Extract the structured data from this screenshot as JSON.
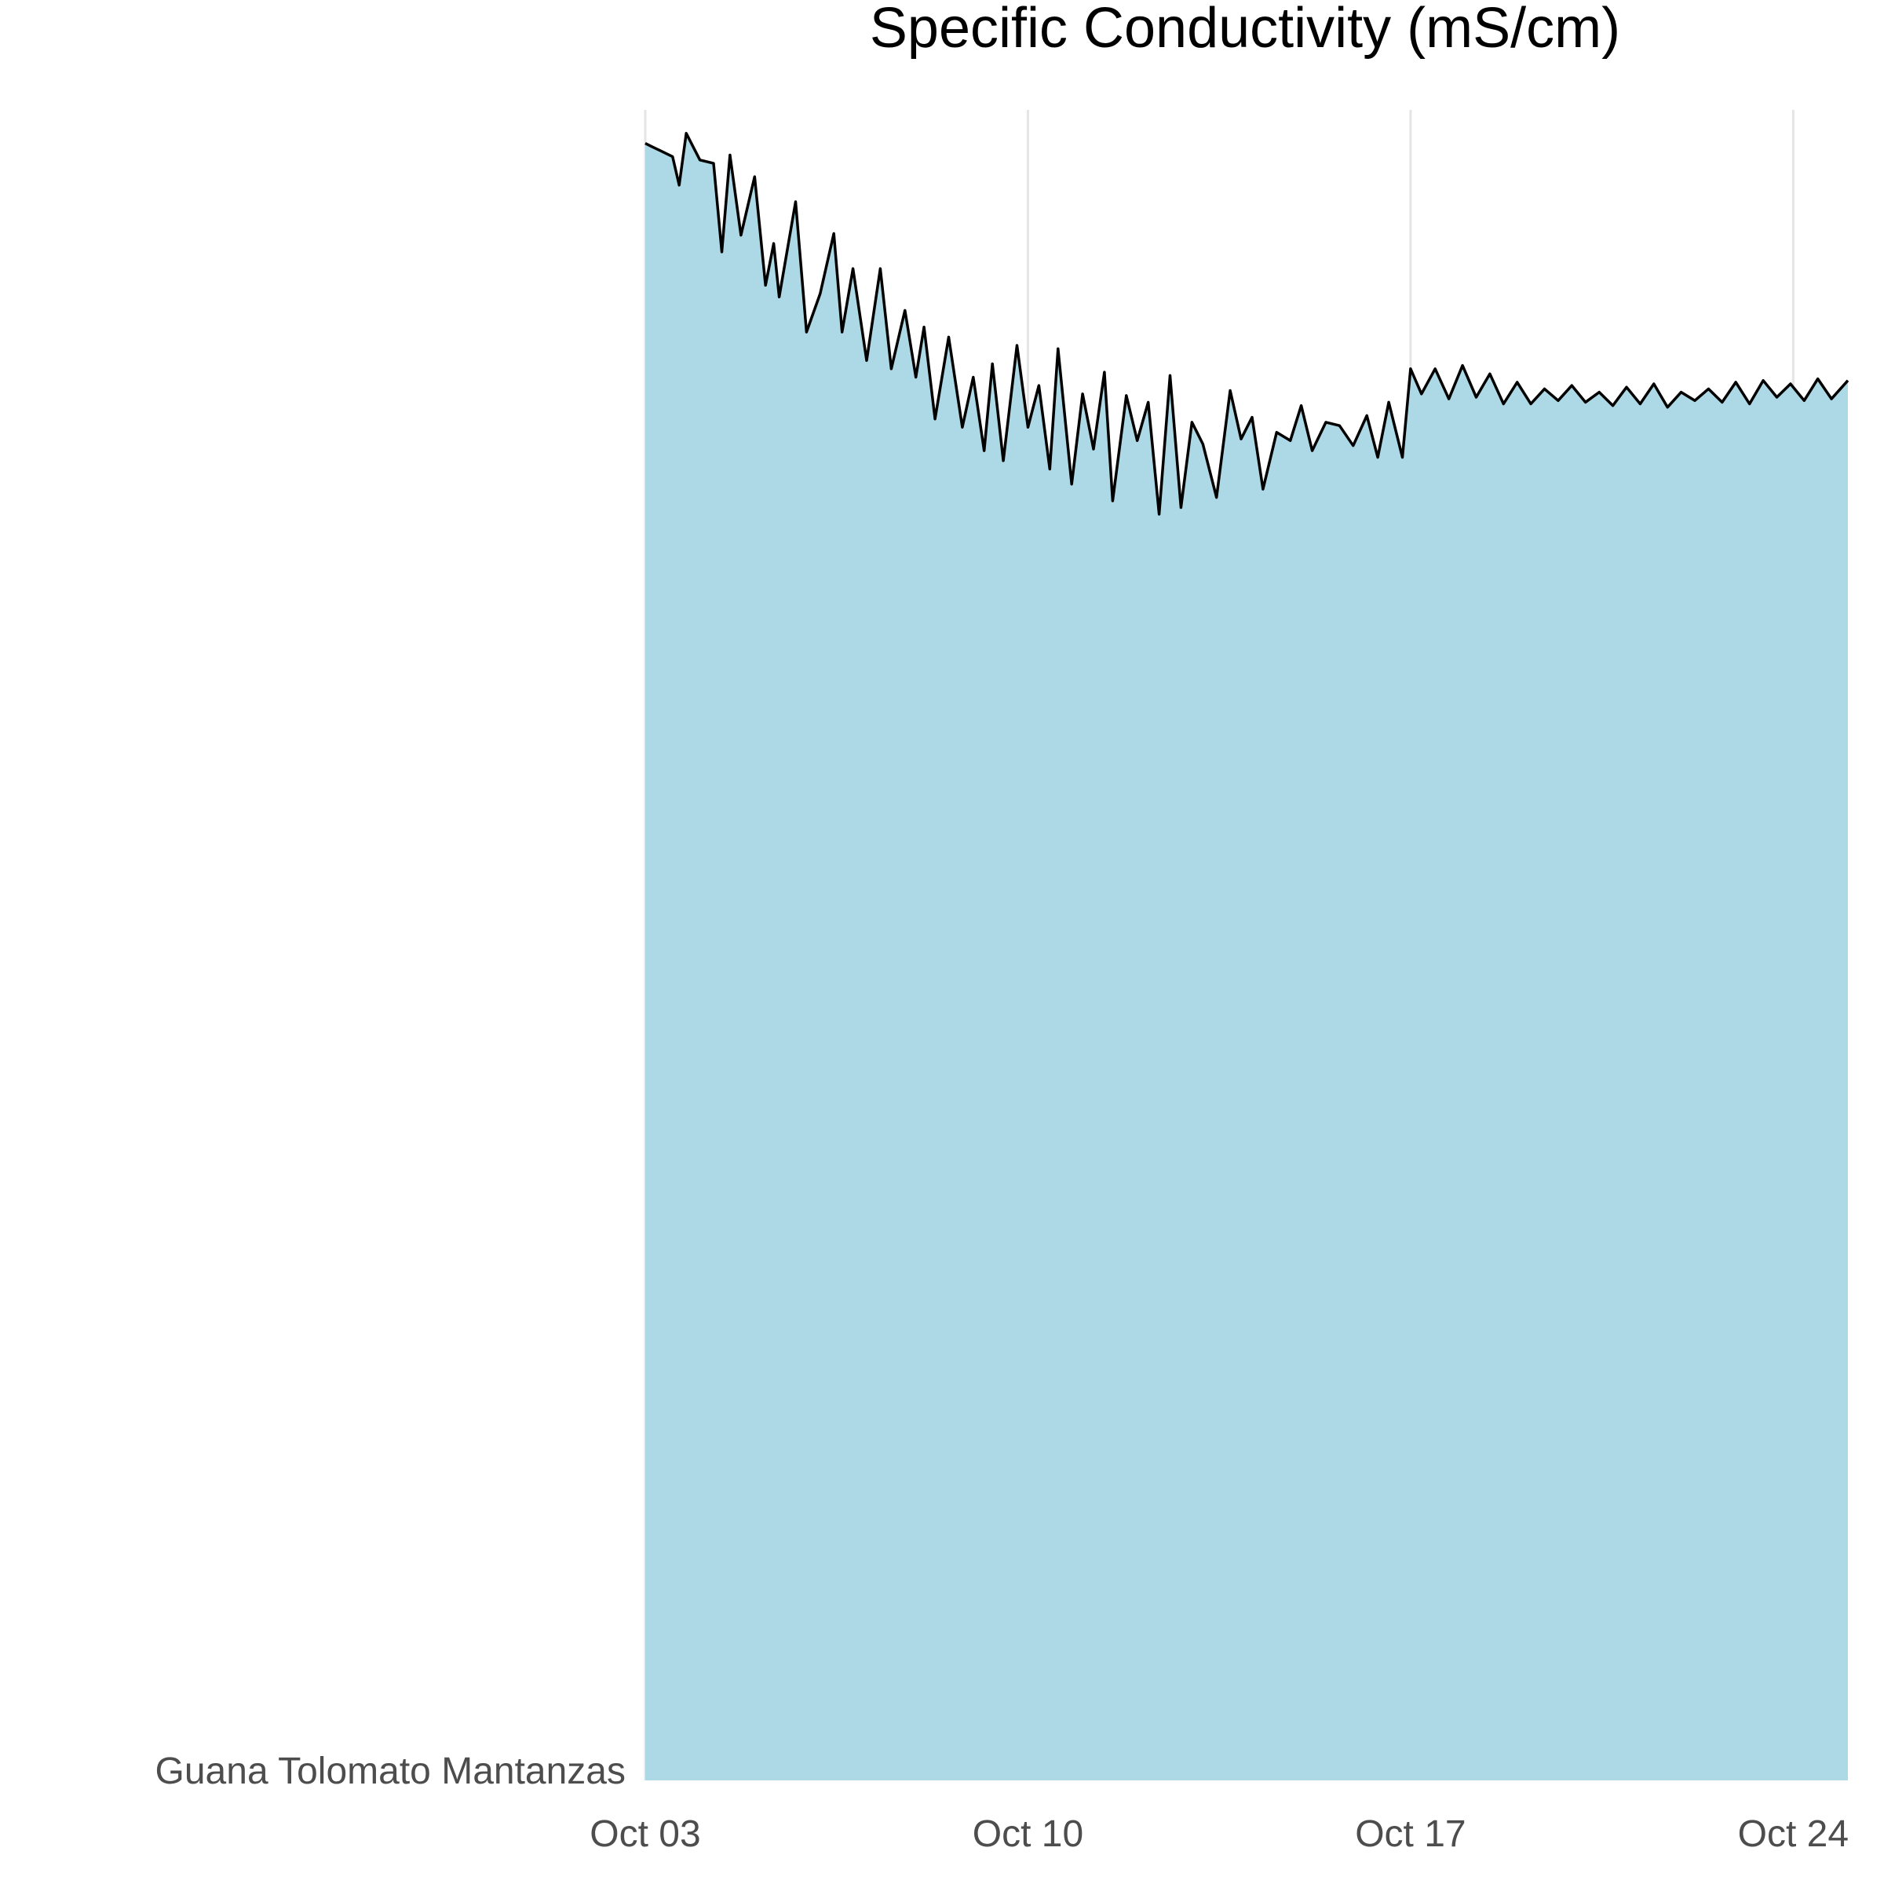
{
  "chart_data": {
    "type": "area",
    "title": "Specific Conductivity (mS/cm)",
    "xlabel": "",
    "ylabel": "",
    "category_label": "Guana Tolomato Mantanzas",
    "x_ticks": [
      "Oct 03",
      "Oct 10",
      "Oct 17",
      "Oct 24"
    ],
    "x_tick_days": [
      0,
      7,
      14,
      21
    ],
    "x_range_days": [
      0,
      22
    ],
    "grid": "vertical-major",
    "fill_color": "#add8e6",
    "line_color": "#000000",
    "series": [
      {
        "x_days": [
          0,
          0.12,
          0.25,
          0.5,
          0.62,
          0.75,
          1.0,
          1.25,
          1.4,
          1.55,
          1.75,
          2.0,
          2.2,
          2.35,
          2.45,
          2.75,
          2.95,
          3.2,
          3.45,
          3.6,
          3.8,
          4.05,
          4.3,
          4.5,
          4.75,
          4.95,
          5.1,
          5.3,
          5.55,
          5.8,
          6.0,
          6.2,
          6.35,
          6.55,
          6.8,
          7.0,
          7.2,
          7.4,
          7.55,
          7.8,
          8.0,
          8.2,
          8.4,
          8.55,
          8.8,
          9.0,
          9.2,
          9.4,
          9.6,
          9.8,
          10.0,
          10.2,
          10.45,
          10.7,
          10.9,
          11.1,
          11.3,
          11.55,
          11.8,
          12.0,
          12.2,
          12.45,
          12.7,
          12.95,
          13.2,
          13.4,
          13.6,
          13.85,
          14.0,
          14.2,
          14.45,
          14.7,
          14.95,
          15.2,
          15.45,
          15.7,
          15.95,
          16.2,
          16.45,
          16.7,
          16.95,
          17.2,
          17.45,
          17.7,
          17.95,
          18.2,
          18.45,
          18.7,
          18.95,
          19.2,
          19.45,
          19.7,
          19.95,
          20.2,
          20.45,
          20.7,
          20.95,
          21.2,
          21.45,
          21.7,
          22.0
        ],
        "values": [
          98,
          97.8,
          97.6,
          97.2,
          95.5,
          98.6,
          97,
          96.8,
          91.5,
          97.3,
          92.5,
          96,
          89.5,
          92,
          88.8,
          94.5,
          86.7,
          89,
          92.6,
          86.7,
          90.5,
          85,
          90.5,
          84.5,
          88,
          84,
          87,
          81.5,
          86.4,
          81,
          84,
          79.6,
          84.8,
          79,
          85.9,
          81,
          83.5,
          78.5,
          85.7,
          77.6,
          83,
          79.7,
          84.3,
          76.6,
          82.9,
          80.2,
          82.5,
          75.8,
          84.1,
          76.2,
          81.3,
          80,
          76.8,
          83.2,
          80.3,
          81.6,
          77.3,
          80.7,
          80.2,
          82.3,
          79.6,
          81.3,
          81.1,
          79.9,
          81.7,
          79.2,
          82.5,
          79.2,
          84.5,
          83,
          84.5,
          82.7,
          84.7,
          82.8,
          84.2,
          82.4,
          83.7,
          82.4,
          83.3,
          82.6,
          83.5,
          82.5,
          83.1,
          82.3,
          83.4,
          82.4,
          83.6,
          82.2,
          83.1,
          82.6,
          83.3,
          82.5,
          83.7,
          82.4,
          83.8,
          82.8,
          83.6,
          82.6,
          83.9,
          82.7,
          83.8
        ]
      }
    ],
    "y_range": [
      0,
      100
    ]
  }
}
